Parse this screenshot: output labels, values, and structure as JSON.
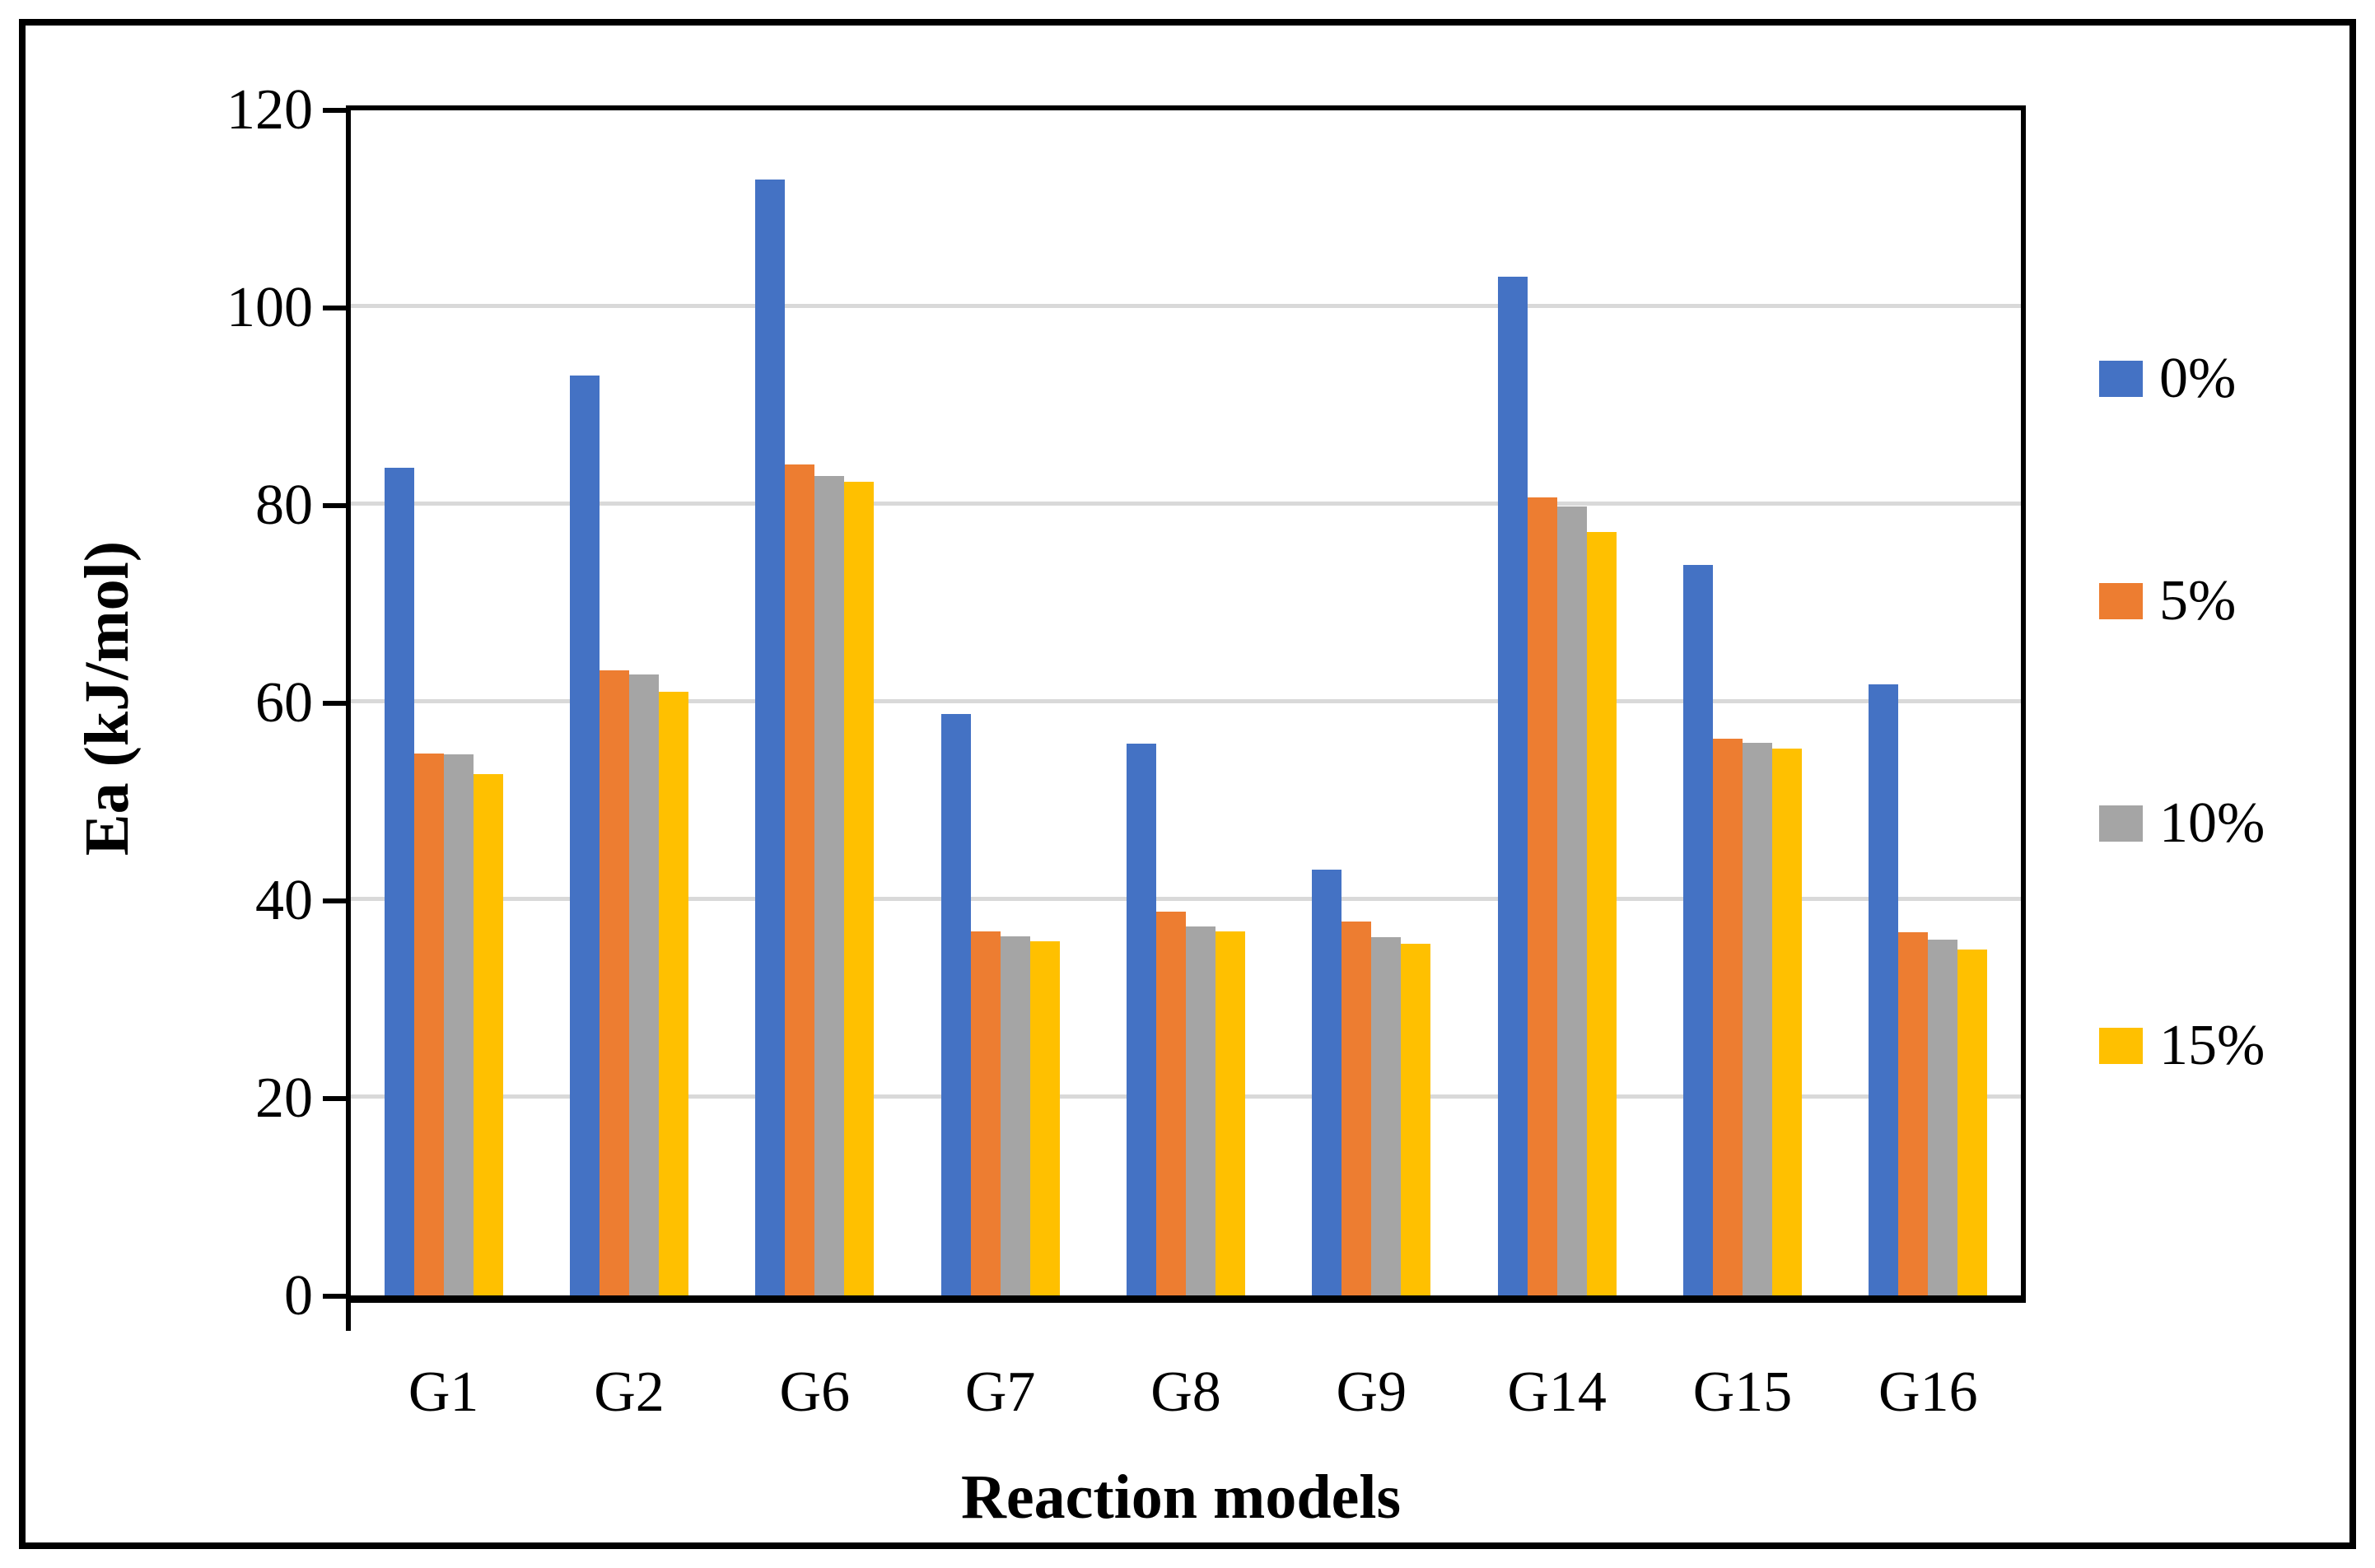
{
  "chart_data": {
    "type": "bar",
    "title": "",
    "xlabel": "Reaction models",
    "ylabel": "Ea (kJ/mol)",
    "categories": [
      "G1",
      "G2",
      "G6",
      "G7",
      "G8",
      "G9",
      "G14",
      "G15",
      "G16"
    ],
    "series": [
      {
        "name": "0%",
        "color": "#4472C4",
        "values": [
          83.8,
          93.2,
          113.0,
          58.9,
          55.9,
          43.2,
          103.2,
          74.0,
          61.9
        ]
      },
      {
        "name": "5%",
        "color": "#ED7D31",
        "values": [
          54.9,
          63.3,
          84.2,
          36.9,
          38.9,
          37.9,
          80.8,
          56.4,
          36.8
        ]
      },
      {
        "name": "10%",
        "color": "#A5A5A5",
        "values": [
          54.8,
          62.9,
          83.0,
          36.4,
          37.4,
          36.3,
          79.9,
          56.0,
          36.1
        ]
      },
      {
        "name": "15%",
        "color": "#FFC000",
        "values": [
          52.8,
          61.2,
          82.4,
          35.9,
          36.9,
          35.7,
          77.3,
          55.4,
          35.1
        ]
      }
    ],
    "ylim": [
      0,
      120
    ],
    "ytick_step": 20,
    "ytick_labels": [
      "0",
      "20",
      "40",
      "60",
      "80",
      "100",
      "120"
    ],
    "grid": true,
    "gridline_color": "#D9D9D9",
    "axis_color": "#000000",
    "legend_position": "right"
  }
}
